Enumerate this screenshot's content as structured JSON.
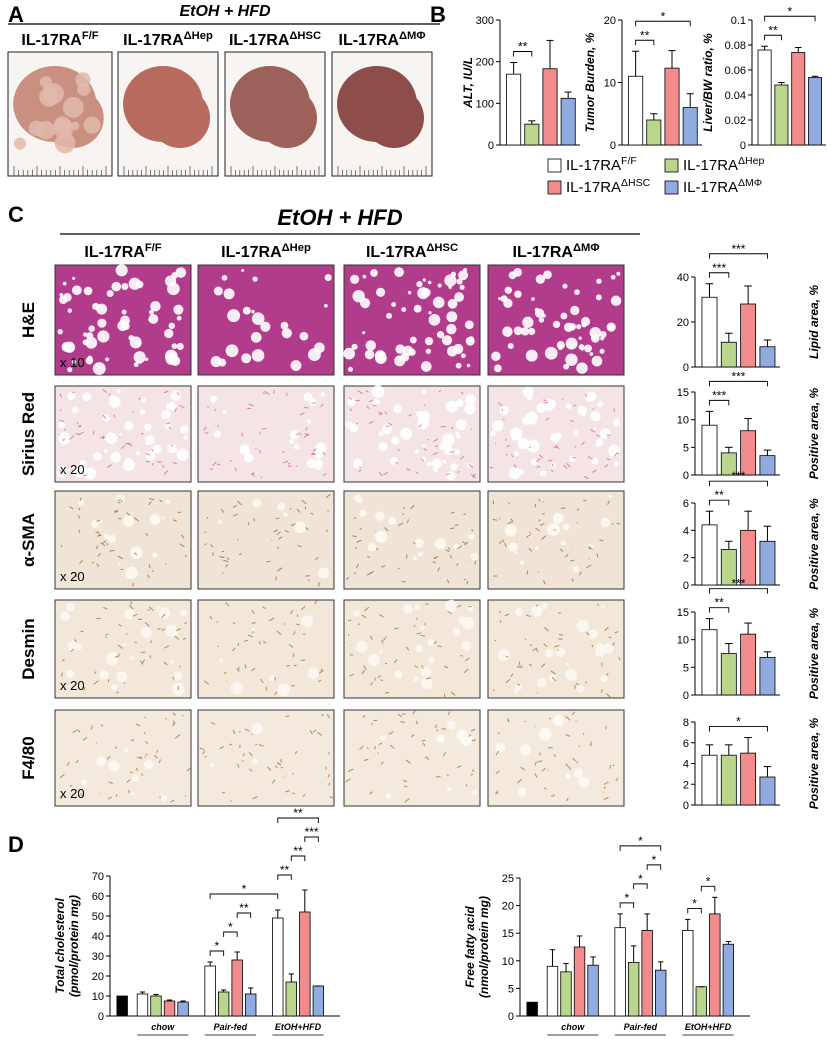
{
  "panel_labels": [
    "A",
    "B",
    "C",
    "D"
  ],
  "genotypes": [
    {
      "base": "IL-17RA",
      "sup": "F/F",
      "color": "#ffffff"
    },
    {
      "base": "IL-17RA",
      "sup": "ΔHep",
      "color": "#b9d68c"
    },
    {
      "base": "IL-17RA",
      "sup": "ΔHSC",
      "color": "#f28b8b"
    },
    {
      "base": "IL-17RA",
      "sup": "ΔMΦ",
      "color": "#8fabe0"
    }
  ],
  "panel_a": {
    "title": "EtOH + HFD"
  },
  "panel_c": {
    "title": "EtOH + HFD",
    "stains": [
      "H&E",
      "Sirius Red",
      "α-SMA",
      "Desmin",
      "F4/80"
    ],
    "magnifications": [
      "x 10",
      "x 20",
      "x 20",
      "x 20",
      "x 20"
    ]
  },
  "chart_data": [
    {
      "type": "bar",
      "ylabel": "ALT, IU/L",
      "values": [
        170,
        50,
        183,
        112
      ],
      "errors": [
        28,
        8,
        68,
        15
      ],
      "ylim": [
        0,
        300
      ],
      "yticks": [
        0,
        100,
        200,
        300
      ],
      "significance": [
        {
          "label": "**",
          "bars": [
            0,
            1
          ]
        }
      ]
    },
    {
      "type": "bar",
      "ylabel": "Tumor Burden, %",
      "values": [
        11,
        4,
        12.3,
        6
      ],
      "errors": [
        4,
        1,
        2.8,
        2.2
      ],
      "ylim": [
        0,
        20
      ],
      "yticks": [
        0,
        10,
        20
      ],
      "significance": [
        {
          "label": "**",
          "bars": [
            0,
            1
          ]
        },
        {
          "label": "*",
          "bars": [
            0,
            3
          ]
        }
      ]
    },
    {
      "type": "bar",
      "ylabel": "Liver/BW ratio, %",
      "values": [
        0.076,
        0.048,
        0.074,
        0.054
      ],
      "errors": [
        0.003,
        0.002,
        0.004,
        0.001
      ],
      "ylim": [
        0,
        0.1
      ],
      "yticks": [
        0,
        0.02,
        0.04,
        0.06,
        0.08,
        0.1
      ],
      "significance": [
        {
          "label": "**",
          "bars": [
            0,
            1
          ]
        },
        {
          "label": "*",
          "bars": [
            0,
            3
          ]
        }
      ]
    },
    {
      "type": "bar",
      "ylabel": "Lipid area, %",
      "values": [
        31,
        11,
        28,
        9
      ],
      "errors": [
        6,
        4,
        8,
        3
      ],
      "ylim": [
        0,
        40
      ],
      "yticks": [
        0,
        20,
        40
      ],
      "significance": [
        {
          "label": "***",
          "bars": [
            0,
            1
          ]
        },
        {
          "label": "***",
          "bars": [
            0,
            3
          ]
        }
      ]
    },
    {
      "type": "bar",
      "ylabel": "Positive area, %",
      "values": [
        9,
        4,
        8,
        3.5
      ],
      "errors": [
        2.5,
        1,
        2.2,
        1
      ],
      "ylim": [
        0,
        15
      ],
      "yticks": [
        0,
        5,
        10,
        15
      ],
      "significance": [
        {
          "label": "***",
          "bars": [
            0,
            1
          ]
        },
        {
          "label": "***",
          "bars": [
            0,
            3
          ]
        }
      ]
    },
    {
      "type": "bar",
      "ylabel": "Positive area, %",
      "values": [
        4.4,
        2.6,
        4,
        3.2
      ],
      "errors": [
        1,
        0.6,
        1.4,
        1.1
      ],
      "ylim": [
        0,
        6
      ],
      "yticks": [
        0,
        2,
        4,
        6
      ],
      "significance": [
        {
          "label": "**",
          "bars": [
            0,
            1
          ]
        },
        {
          "label": "***",
          "bars": [
            0,
            3
          ]
        }
      ]
    },
    {
      "type": "bar",
      "ylabel": "Positive area, %",
      "values": [
        11.8,
        7.5,
        11,
        6.8
      ],
      "errors": [
        2,
        1.8,
        2,
        1
      ],
      "ylim": [
        0,
        15
      ],
      "yticks": [
        0,
        5,
        10,
        15
      ],
      "significance": [
        {
          "label": "**",
          "bars": [
            0,
            1
          ]
        },
        {
          "label": "***",
          "bars": [
            0,
            3
          ]
        }
      ]
    },
    {
      "type": "bar",
      "ylabel": "Positive area, %",
      "values": [
        4.8,
        4.8,
        5,
        2.7
      ],
      "errors": [
        1,
        1,
        1.5,
        1
      ],
      "ylim": [
        0,
        8
      ],
      "yticks": [
        0,
        2,
        4,
        6,
        8
      ],
      "significance": [
        {
          "label": "*",
          "bars": [
            0,
            3
          ]
        }
      ]
    },
    {
      "type": "grouped-bar",
      "ylabel": [
        "Total cholesterol",
        "(pmol/protein mg)"
      ],
      "control": {
        "value": 10,
        "color": "#000000"
      },
      "groups": [
        {
          "name": "chow",
          "values": [
            11,
            10,
            7.5,
            7
          ],
          "errors": [
            1,
            0.8,
            0.5,
            0.5
          ]
        },
        {
          "name": "Pair-fed",
          "values": [
            25,
            12,
            28,
            11
          ],
          "errors": [
            2,
            1,
            4,
            3
          ]
        },
        {
          "name": "EtOH+HFD",
          "values": [
            49,
            17,
            52,
            15
          ],
          "errors": [
            4,
            4,
            11,
            0
          ]
        }
      ],
      "ylim": [
        0,
        70
      ],
      "yticks": [
        0,
        10,
        20,
        30,
        40,
        50,
        60,
        70
      ],
      "significance": [
        {
          "label": "*",
          "bars": [
            5,
            6
          ]
        },
        {
          "label": "*",
          "bars": [
            6,
            7
          ]
        },
        {
          "label": "**",
          "bars": [
            7,
            8
          ]
        },
        {
          "label": "*",
          "bars": [
            5,
            9
          ]
        },
        {
          "label": "**",
          "bars": [
            9,
            10
          ]
        },
        {
          "label": "**",
          "bars": [
            10,
            11
          ]
        },
        {
          "label": "***",
          "bars": [
            11,
            12
          ]
        },
        {
          "label": "**",
          "bars": [
            9,
            12
          ]
        }
      ]
    },
    {
      "type": "grouped-bar",
      "ylabel": [
        "Free fatty acid",
        "(nmol/protein mg)"
      ],
      "control": {
        "value": 2.5,
        "color": "#000000"
      },
      "groups": [
        {
          "name": "chow",
          "values": [
            9,
            8,
            12.5,
            9.2
          ],
          "errors": [
            3,
            1.5,
            2,
            1.5
          ]
        },
        {
          "name": "Pair-fed",
          "values": [
            16,
            9.7,
            15.5,
            8.3
          ],
          "errors": [
            2.5,
            3,
            3,
            1.5
          ]
        },
        {
          "name": "EtOH+HFD",
          "values": [
            15.5,
            5.3,
            18.5,
            13
          ],
          "errors": [
            2,
            0,
            3,
            0.5
          ]
        }
      ],
      "ylim": [
        0,
        25
      ],
      "yticks": [
        0,
        5,
        10,
        15,
        20,
        25
      ],
      "significance": [
        {
          "label": "*",
          "bars": [
            5,
            6
          ]
        },
        {
          "label": "*",
          "bars": [
            6,
            7
          ]
        },
        {
          "label": "*",
          "bars": [
            7,
            8
          ]
        },
        {
          "label": "*",
          "bars": [
            5,
            8
          ]
        },
        {
          "label": "*",
          "bars": [
            9,
            10
          ]
        },
        {
          "label": "*",
          "bars": [
            10,
            11
          ]
        }
      ]
    }
  ]
}
